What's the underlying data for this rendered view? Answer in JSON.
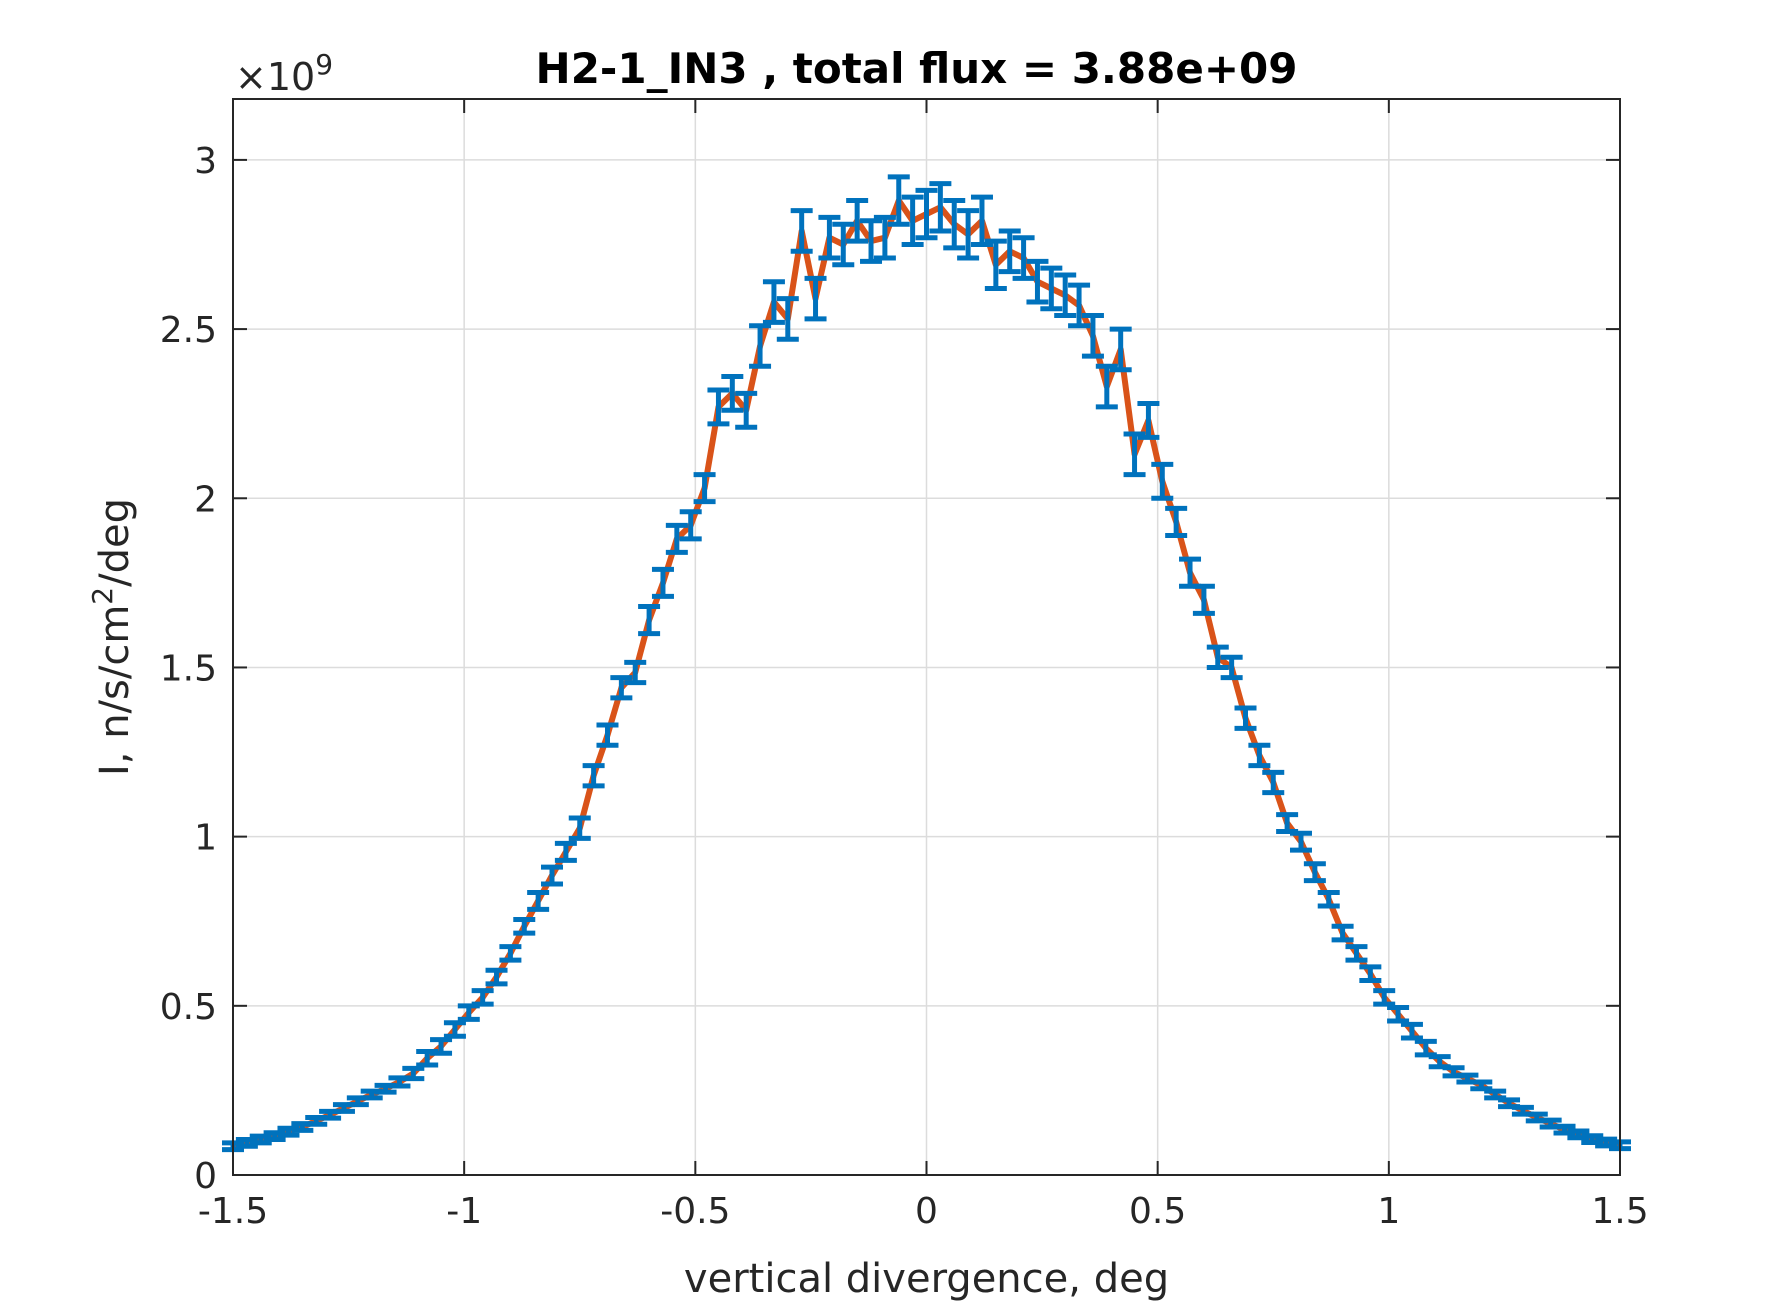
{
  "chart_data": {
    "type": "line",
    "title": "H2-1_IN3 , total flux =  3.88e+09",
    "xlabel": "vertical divergence, deg",
    "ylabel": "I, n/s/cm",
    "ylabel_superscript": "2",
    "ylabel_suffix": "/deg",
    "exponent_label": "×10",
    "exponent_value": "9",
    "xlim": [
      -1.5,
      1.5
    ],
    "ylim": [
      0,
      3.18
    ],
    "xticks": [
      -1.5,
      -1,
      -0.5,
      0,
      0.5,
      1,
      1.5
    ],
    "xtick_labels": [
      "-1.5",
      "-1",
      "-0.5",
      "0",
      "0.5",
      "1",
      "1.5"
    ],
    "yticks": [
      0,
      0.5,
      1,
      1.5,
      2,
      2.5,
      3
    ],
    "ytick_labels": [
      "0",
      "0.5",
      "1",
      "1.5",
      "2",
      "2.5",
      "3"
    ],
    "grid": true,
    "colors": {
      "line": "#D95319",
      "errorbar": "#0072BD"
    },
    "series": [
      {
        "x": [
          -1.5,
          -1.47,
          -1.44,
          -1.41,
          -1.38,
          -1.35,
          -1.32,
          -1.29,
          -1.26,
          -1.23,
          -1.2,
          -1.17,
          -1.14,
          -1.11,
          -1.08,
          -1.05,
          -1.02,
          -0.99,
          -0.96,
          -0.93,
          -0.9,
          -0.87,
          -0.84,
          -0.81,
          -0.78,
          -0.75,
          -0.72,
          -0.69,
          -0.66,
          -0.63,
          -0.6,
          -0.57,
          -0.54,
          -0.51,
          -0.48,
          -0.45,
          -0.42,
          -0.39,
          -0.36,
          -0.33,
          -0.3,
          -0.27,
          -0.24,
          -0.21,
          -0.18,
          -0.15,
          -0.12,
          -0.09,
          -0.06,
          -0.03,
          0,
          0.03,
          0.06,
          0.09,
          0.12,
          0.15,
          0.18,
          0.21,
          0.24,
          0.27,
          0.3,
          0.33,
          0.36,
          0.39,
          0.42,
          0.45,
          0.48,
          0.51,
          0.54,
          0.57,
          0.6,
          0.63,
          0.66,
          0.69,
          0.72,
          0.75,
          0.78,
          0.81,
          0.84,
          0.87,
          0.9,
          0.93,
          0.96,
          0.99,
          1.02,
          1.05,
          1.08,
          1.11,
          1.14,
          1.17,
          1.2,
          1.23,
          1.26,
          1.29,
          1.32,
          1.35,
          1.38,
          1.41,
          1.44,
          1.47,
          1.5
        ],
        "y": [
          0.085,
          0.095,
          0.105,
          0.115,
          0.128,
          0.142,
          0.16,
          0.178,
          0.198,
          0.218,
          0.238,
          0.255,
          0.275,
          0.3,
          0.345,
          0.38,
          0.43,
          0.48,
          0.525,
          0.585,
          0.655,
          0.735,
          0.81,
          0.885,
          0.955,
          1.025,
          1.18,
          1.3,
          1.44,
          1.485,
          1.64,
          1.75,
          1.88,
          1.92,
          2.03,
          2.27,
          2.31,
          2.26,
          2.45,
          2.58,
          2.53,
          2.79,
          2.59,
          2.77,
          2.75,
          2.82,
          2.76,
          2.77,
          2.88,
          2.82,
          2.84,
          2.86,
          2.81,
          2.78,
          2.82,
          2.69,
          2.73,
          2.71,
          2.64,
          2.62,
          2.6,
          2.57,
          2.48,
          2.33,
          2.44,
          2.13,
          2.23,
          2.05,
          1.93,
          1.78,
          1.7,
          1.53,
          1.5,
          1.35,
          1.24,
          1.16,
          1.04,
          0.985,
          0.895,
          0.815,
          0.715,
          0.655,
          0.595,
          0.525,
          0.475,
          0.425,
          0.375,
          0.335,
          0.305,
          0.285,
          0.265,
          0.238,
          0.212,
          0.19,
          0.17,
          0.152,
          0.134,
          0.12,
          0.106,
          0.096,
          0.088
        ],
        "err": [
          0.01,
          0.01,
          0.01,
          0.01,
          0.01,
          0.01,
          0.01,
          0.01,
          0.01,
          0.01,
          0.01,
          0.01,
          0.012,
          0.015,
          0.02,
          0.02,
          0.02,
          0.02,
          0.02,
          0.02,
          0.02,
          0.02,
          0.025,
          0.025,
          0.025,
          0.03,
          0.03,
          0.03,
          0.03,
          0.03,
          0.04,
          0.04,
          0.04,
          0.04,
          0.04,
          0.05,
          0.05,
          0.05,
          0.06,
          0.06,
          0.06,
          0.06,
          0.06,
          0.06,
          0.06,
          0.06,
          0.06,
          0.06,
          0.07,
          0.07,
          0.07,
          0.07,
          0.07,
          0.07,
          0.07,
          0.07,
          0.06,
          0.06,
          0.06,
          0.06,
          0.06,
          0.06,
          0.06,
          0.06,
          0.06,
          0.06,
          0.05,
          0.05,
          0.04,
          0.04,
          0.04,
          0.03,
          0.03,
          0.03,
          0.03,
          0.03,
          0.025,
          0.025,
          0.025,
          0.02,
          0.02,
          0.02,
          0.02,
          0.02,
          0.02,
          0.02,
          0.02,
          0.015,
          0.012,
          0.01,
          0.01,
          0.01,
          0.01,
          0.01,
          0.01,
          0.01,
          0.01,
          0.01,
          0.01,
          0.01,
          0.01
        ]
      }
    ]
  }
}
